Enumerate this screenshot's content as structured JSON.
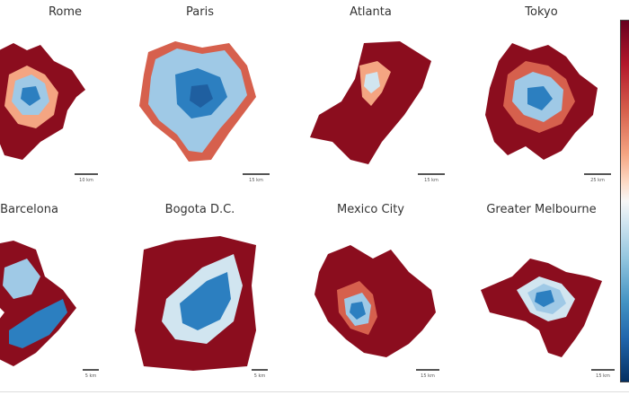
{
  "panels": [
    {
      "title": "Rome",
      "scale": "10 km"
    },
    {
      "title": "Paris",
      "scale": "15 km"
    },
    {
      "title": "Atlanta",
      "scale": "15 km"
    },
    {
      "title": "Tokyo",
      "scale": "25 km"
    },
    {
      "title": "Barcelona",
      "scale": "5 km"
    },
    {
      "title": "Bogota D.C.",
      "scale": "5 km"
    },
    {
      "title": "Mexico City",
      "scale": "15 km"
    },
    {
      "title": "Greater Melbourne",
      "scale": "15 km"
    }
  ],
  "colormap": {
    "high": "#67001f",
    "mid": "#f7f7f7",
    "low": "#053061",
    "red": "#8b0d1e",
    "blue": "#2c7fc0",
    "lightblue": "#9fc9e6"
  }
}
